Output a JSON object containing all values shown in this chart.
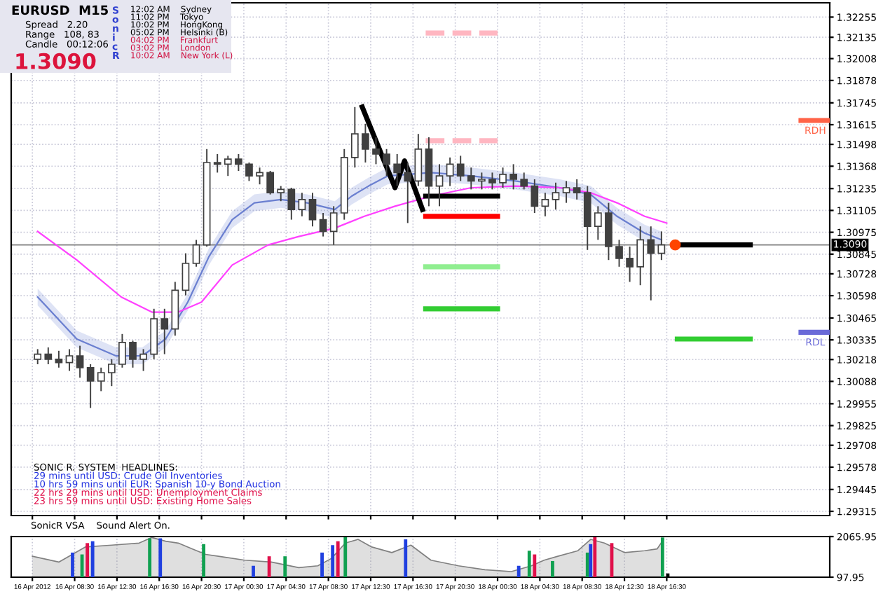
{
  "chart_data": [
    {
      "type": "candlestick",
      "xlim": [
        "2012-04-16T02:30",
        "2012-04-19T07:55"
      ],
      "ylim": [
        1.2929,
        1.3234
      ],
      "xticks": [
        {
          "value": "2012-04-16T04:30",
          "label": null
        },
        {
          "value": "2012-04-16T08:30",
          "label": null
        },
        {
          "value": "2012-04-16T12:30",
          "label": null
        },
        {
          "value": "2012-04-16T16:30",
          "label": null
        },
        {
          "value": "2012-04-16T20:30",
          "label": null
        },
        {
          "value": "2012-04-17T00:30",
          "label": null
        },
        {
          "value": "2012-04-17T04:30",
          "label": null
        },
        {
          "value": "2012-04-17T08:30",
          "label": null
        },
        {
          "value": "2012-04-17T12:30",
          "label": null
        },
        {
          "value": "2012-04-17T16:30",
          "label": null
        },
        {
          "value": "2012-04-17T20:30",
          "label": null
        },
        {
          "value": "2012-04-18T00:30",
          "label": null
        },
        {
          "value": "2012-04-18T04:30",
          "label": null
        },
        {
          "value": "2012-04-18T08:30",
          "label": null
        },
        {
          "value": "2012-04-18T12:30",
          "label": null
        },
        {
          "value": "2012-04-18T16:30",
          "label": null
        }
      ],
      "yticks": [
        1.32255,
        1.32135,
        1.32008,
        1.31878,
        1.31745,
        1.31615,
        1.31498,
        1.31368,
        1.31235,
        1.31105,
        1.30975,
        1.30845,
        1.30728,
        1.30598,
        1.30465,
        1.30335,
        1.30218,
        1.30088,
        1.29955,
        1.29825,
        1.29708,
        1.29578,
        1.29445,
        1.29315
      ],
      "grid": true,
      "tick_labels": "y",
      "ref_lines": [
        {
          "axis": "y",
          "value": 1.309,
          "label": "1.3090",
          "color": "#808080"
        }
      ],
      "annotations": [
        "EURUSD  M15",
        "Spread   2.20",
        "Range   108, 83",
        "Candle   00:12:06",
        "1.3090",
        "S\no\nn\ni\nc\nR",
        "12:02 AM    Sydney",
        "11:02 PM    Tokyo",
        "10:02 PM    HongKong",
        "05:02 PM    Helsinki (B)",
        "04:02 PM    Frankfurt",
        "03:02 PM    London",
        "10:02 AM    New York (L)",
        "SONIC R. SYSTEM  HEADLINES:",
        "29 mins until USD: Crude Oil Inventories",
        "10 hrs 59 mins until EUR: Spanish 10-y Bond Auction",
        "22 hrs 29 mins until USD: Unemployment Claims",
        "23 hrs 59 mins until USD: Existing Home Sales"
      ],
      "series": [
        {
          "type": "line",
          "color": "#6a7fd0",
          "x": [
            "2012-04-16T05:00",
            "2012-04-16T08:42",
            "2012-04-16T12:24",
            "2012-04-16T14:54",
            "2012-04-16T17:06",
            "2012-04-16T19:12",
            "2012-04-16T21:12",
            "2012-04-16T23:24",
            "2012-04-17T01:30",
            "2012-04-17T04:00",
            "2012-04-17T06:30",
            "2012-04-17T09:06",
            "2012-04-17T10:42",
            "2012-04-17T12:18",
            "2012-04-17T14:06",
            "2012-04-17T16:06",
            "2012-04-17T18:12",
            "2012-04-17T22:00",
            "2012-04-18T02:12",
            "2012-04-18T06:24",
            "2012-04-18T09:18",
            "2012-04-18T11:48",
            "2012-04-18T14:24",
            "2012-04-18T16:00"
          ],
          "values": [
            1.3059,
            1.3034,
            1.3024,
            1.3024,
            1.3034,
            1.3056,
            1.3083,
            1.3105,
            1.3115,
            1.3117,
            1.3115,
            1.3111,
            1.3119,
            1.3125,
            1.3131,
            1.3132,
            1.3133,
            1.3131,
            1.3128,
            1.3124,
            1.312,
            1.3107,
            1.3097,
            1.3093
          ],
          "lower": [
            1.3054,
            1.3029,
            1.3019,
            1.3019,
            1.3029,
            1.3051,
            1.3078,
            1.31,
            1.311,
            1.3112,
            1.311,
            1.3106,
            1.3114,
            1.312,
            1.3126,
            1.3127,
            1.3128,
            1.3126,
            1.3123,
            1.3119,
            1.3115,
            1.3102,
            1.3092,
            1.3088
          ],
          "upper": [
            1.3064,
            1.3039,
            1.3029,
            1.3029,
            1.3039,
            1.3061,
            1.3088,
            1.311,
            1.312,
            1.3122,
            1.312,
            1.3116,
            1.3124,
            1.313,
            1.3136,
            1.3137,
            1.3138,
            1.3136,
            1.3133,
            1.3129,
            1.3125,
            1.3112,
            1.3102,
            1.3098
          ]
        },
        {
          "type": "line",
          "color": "#ff40ff",
          "x": [
            "2012-04-16T05:00",
            "2012-04-16T08:42",
            "2012-04-16T12:54",
            "2012-04-16T15:48",
            "2012-04-16T18:18",
            "2012-04-16T20:30",
            "2012-04-16T23:24",
            "2012-04-17T02:48",
            "2012-04-17T05:42",
            "2012-04-17T09:06",
            "2012-04-17T11:54",
            "2012-04-17T14:48",
            "2012-04-17T18:12",
            "2012-04-17T22:00",
            "2012-04-18T02:12",
            "2012-04-18T06:24",
            "2012-04-18T09:18",
            "2012-04-18T11:48",
            "2012-04-18T14:24",
            "2012-04-18T16:30"
          ],
          "values": [
            1.3098,
            1.3081,
            1.3059,
            1.305,
            1.305,
            1.3056,
            1.3078,
            1.309,
            1.3095,
            1.31,
            1.3107,
            1.3113,
            1.3119,
            1.3124,
            1.3125,
            1.3124,
            1.3121,
            1.3115,
            1.3107,
            1.3103
          ]
        },
        {
          "color": "#404040",
          "x": [
            "2012-04-16T05:00",
            "2012-04-16T06:00",
            "2012-04-16T07:00",
            "2012-04-16T08:00",
            "2012-04-16T09:00",
            "2012-04-16T10:00",
            "2012-04-16T11:00",
            "2012-04-16T12:00",
            "2012-04-16T13:00",
            "2012-04-16T14:00",
            "2012-04-16T15:00",
            "2012-04-16T16:00",
            "2012-04-16T17:00",
            "2012-04-16T18:00",
            "2012-04-16T19:00",
            "2012-04-16T20:00",
            "2012-04-16T21:00",
            "2012-04-16T22:00",
            "2012-04-16T23:00",
            "2012-04-17T00:00",
            "2012-04-17T01:00",
            "2012-04-17T02:00",
            "2012-04-17T03:00",
            "2012-04-17T04:00",
            "2012-04-17T05:00",
            "2012-04-17T06:00",
            "2012-04-17T07:00",
            "2012-04-17T08:00",
            "2012-04-17T09:00",
            "2012-04-17T10:00",
            "2012-04-17T11:00",
            "2012-04-17T12:00",
            "2012-04-17T13:00",
            "2012-04-17T14:00",
            "2012-04-17T15:00",
            "2012-04-17T16:00",
            "2012-04-17T17:00",
            "2012-04-17T18:00",
            "2012-04-17T19:00",
            "2012-04-17T20:00",
            "2012-04-17T21:00",
            "2012-04-17T22:00",
            "2012-04-17T23:00",
            "2012-04-18T00:00",
            "2012-04-18T01:00",
            "2012-04-18T02:00",
            "2012-04-18T03:00",
            "2012-04-18T04:00",
            "2012-04-18T05:00",
            "2012-04-18T06:00",
            "2012-04-18T07:00",
            "2012-04-18T08:00",
            "2012-04-18T09:00",
            "2012-04-18T10:00",
            "2012-04-18T11:00",
            "2012-04-18T12:00",
            "2012-04-18T13:00",
            "2012-04-18T14:00",
            "2012-04-18T15:00",
            "2012-04-18T16:00"
          ],
          "ohlc": [
            [
              1.3022,
              1.3028,
              1.3019,
              1.3025
            ],
            [
              1.3025,
              1.3029,
              1.3019,
              1.3022
            ],
            [
              1.3022,
              1.3027,
              1.3017,
              1.302
            ],
            [
              1.302,
              1.3028,
              1.3015,
              1.3024
            ],
            [
              1.3024,
              1.303,
              1.3011,
              1.3017
            ],
            [
              1.3017,
              1.3019,
              1.2993,
              1.3009
            ],
            [
              1.3009,
              1.3017,
              1.3003,
              1.3014
            ],
            [
              1.3014,
              1.3022,
              1.3006,
              1.3019
            ],
            [
              1.3019,
              1.3037,
              1.3017,
              1.3032
            ],
            [
              1.3032,
              1.3033,
              1.3017,
              1.3022
            ],
            [
              1.3022,
              1.3028,
              1.3015,
              1.3025
            ],
            [
              1.3025,
              1.3052,
              1.3022,
              1.3046
            ],
            [
              1.3046,
              1.3052,
              1.3025,
              1.304
            ],
            [
              1.304,
              1.3068,
              1.3036,
              1.3063
            ],
            [
              1.3063,
              1.3085,
              1.306,
              1.3079
            ],
            [
              1.3079,
              1.3093,
              1.3077,
              1.309
            ],
            [
              1.309,
              1.3147,
              1.3089,
              1.3139
            ],
            [
              1.3139,
              1.3144,
              1.3133,
              1.3138
            ],
            [
              1.3138,
              1.3143,
              1.3131,
              1.3141
            ],
            [
              1.3141,
              1.3144,
              1.3134,
              1.3138
            ],
            [
              1.3138,
              1.3139,
              1.3128,
              1.3131
            ],
            [
              1.3131,
              1.3136,
              1.3126,
              1.3133
            ],
            [
              1.3133,
              1.3134,
              1.312,
              1.3121
            ],
            [
              1.3121,
              1.3125,
              1.3116,
              1.3123
            ],
            [
              1.3123,
              1.3124,
              1.3105,
              1.3111
            ],
            [
              1.3111,
              1.3121,
              1.3107,
              1.3117
            ],
            [
              1.3117,
              1.3121,
              1.3101,
              1.3105
            ],
            [
              1.3105,
              1.3109,
              1.3095,
              1.3098
            ],
            [
              1.3098,
              1.3113,
              1.309,
              1.3109
            ],
            [
              1.3109,
              1.3147,
              1.3105,
              1.3142
            ],
            [
              1.3142,
              1.3172,
              1.3136,
              1.3156
            ],
            [
              1.3156,
              1.3162,
              1.3139,
              1.3147
            ],
            [
              1.3147,
              1.3154,
              1.3138,
              1.3144
            ],
            [
              1.3144,
              1.3147,
              1.3131,
              1.3138
            ],
            [
              1.3138,
              1.3144,
              1.3125,
              1.3133
            ],
            [
              1.3133,
              1.3139,
              1.3103,
              1.3128
            ],
            [
              1.3128,
              1.3156,
              1.3125,
              1.3147
            ],
            [
              1.3147,
              1.3154,
              1.3113,
              1.3125
            ],
            [
              1.3125,
              1.3138,
              1.3113,
              1.3131
            ],
            [
              1.3131,
              1.3142,
              1.3125,
              1.3138
            ],
            [
              1.3138,
              1.3143,
              1.3128,
              1.3131
            ],
            [
              1.3131,
              1.3136,
              1.3123,
              1.3128
            ],
            [
              1.3128,
              1.3133,
              1.3123,
              1.3129
            ],
            [
              1.3129,
              1.3133,
              1.3123,
              1.3127
            ],
            [
              1.3127,
              1.3136,
              1.3124,
              1.3132
            ],
            [
              1.3132,
              1.3138,
              1.3123,
              1.3129
            ],
            [
              1.3129,
              1.3133,
              1.3123,
              1.3125
            ],
            [
              1.3125,
              1.3129,
              1.3109,
              1.3113
            ],
            [
              1.3113,
              1.3121,
              1.3107,
              1.3117
            ],
            [
              1.3117,
              1.3127,
              1.3111,
              1.3121
            ],
            [
              1.3121,
              1.3128,
              1.3115,
              1.3124
            ],
            [
              1.3124,
              1.3129,
              1.3117,
              1.3121
            ],
            [
              1.3121,
              1.3125,
              1.3087,
              1.3101
            ],
            [
              1.3101,
              1.3113,
              1.3093,
              1.3109
            ],
            [
              1.3109,
              1.3115,
              1.3081,
              1.3089
            ],
            [
              1.3089,
              1.3093,
              1.3077,
              1.3082
            ],
            [
              1.3082,
              1.3089,
              1.3068,
              1.3077
            ],
            [
              1.3077,
              1.3101,
              1.3066,
              1.3093
            ],
            [
              1.3093,
              1.3101,
              1.3057,
              1.3085
            ],
            [
              1.3085,
              1.3098,
              1.3081,
              1.309
            ]
          ]
        },
        {
          "type": "line",
          "color": "#000000",
          "x": [
            "2012-04-17T11:42",
            "2012-04-17T14:48",
            "2012-04-17T15:42",
            "2012-04-17T17:24"
          ],
          "values": [
            1.3172,
            1.3124,
            1.314,
            1.3111
          ]
        },
        {
          "type": "line",
          "color": "#ffb6c1",
          "line_style": "dashed",
          "x": [
            "2012-04-17T17:42",
            "2012-04-18T00:30"
          ],
          "values": [
            1.3216,
            1.3216
          ]
        },
        {
          "type": "line",
          "color": "#ffb6c1",
          "line_style": "dashed",
          "x": [
            "2012-04-17T17:42",
            "2012-04-18T00:30"
          ],
          "values": [
            1.3152,
            1.3152
          ]
        },
        {
          "type": "line",
          "color": "#000000",
          "x": [
            "2012-04-17T17:42",
            "2012-04-18T00:30"
          ],
          "values": [
            1.3119,
            1.3119
          ]
        },
        {
          "type": "line",
          "color": "#ff0000",
          "x": [
            "2012-04-17T17:42",
            "2012-04-18T00:30"
          ],
          "values": [
            1.3107,
            1.3107
          ]
        },
        {
          "type": "line",
          "color": "#90ee90",
          "x": [
            "2012-04-17T17:42",
            "2012-04-18T00:30"
          ],
          "values": [
            1.3077,
            1.3077
          ]
        },
        {
          "type": "line",
          "color": "#32cd32",
          "x": [
            "2012-04-17T17:42",
            "2012-04-18T00:30"
          ],
          "values": [
            1.3052,
            1.3052
          ]
        },
        {
          "type": "line",
          "color": "#000000",
          "x": [
            "2012-04-18T17:30",
            "2012-04-19T00:24"
          ],
          "values": [
            1.309,
            1.309
          ]
        },
        {
          "type": "line",
          "color": "#32cd32",
          "x": [
            "2012-04-18T17:30",
            "2012-04-19T00:24"
          ],
          "values": [
            1.3034,
            1.3034
          ]
        },
        {
          "type": "line",
          "name": "RDH",
          "color": "#ff6347",
          "x": [
            "2012-04-19T05:12",
            "2012-04-19T07:54"
          ],
          "values": [
            1.3164,
            1.3164
          ]
        },
        {
          "type": "line",
          "name": "RDL",
          "color": "#6a6ad8",
          "x": [
            "2012-04-19T05:12",
            "2012-04-19T07:54"
          ],
          "values": [
            1.3038,
            1.3038
          ]
        },
        {
          "type": "scatter",
          "color": "#ff4500",
          "x": [
            "2012-04-18T17:18"
          ],
          "values": [
            1.309
          ]
        }
      ]
    },
    {
      "type": "area",
      "xlim": [
        "2012-04-16T02:30",
        "2012-04-19T07:55"
      ],
      "ylim": [
        97.95,
        2065.95
      ],
      "yticks": [
        97.95,
        2065.95
      ],
      "grid": true,
      "xticks": [
        {
          "value": "2012-04-16T04:30",
          "label": "16 Apr 2012"
        },
        {
          "value": "2012-04-16T08:30",
          "label": "16 Apr 08:30"
        },
        {
          "value": "2012-04-16T12:30",
          "label": "16 Apr 12:30"
        },
        {
          "value": "2012-04-16T16:30",
          "label": "16 Apr 16:30"
        },
        {
          "value": "2012-04-16T20:30",
          "label": "16 Apr 20:30"
        },
        {
          "value": "2012-04-17T00:30",
          "label": "17 Apr 00:30"
        },
        {
          "value": "2012-04-17T04:30",
          "label": "17 Apr 04:30"
        },
        {
          "value": "2012-04-17T08:30",
          "label": "17 Apr 08:30"
        },
        {
          "value": "2012-04-17T12:30",
          "label": "17 Apr 12:30"
        },
        {
          "value": "2012-04-17T16:30",
          "label": "17 Apr 16:30"
        },
        {
          "value": "2012-04-17T20:30",
          "label": "17 Apr 20:30"
        },
        {
          "value": "2012-04-18T00:30",
          "label": "18 Apr 00:30"
        },
        {
          "value": "2012-04-18T04:30",
          "label": "18 Apr 04:30"
        },
        {
          "value": "2012-04-18T08:30",
          "label": "18 Apr 08:30"
        },
        {
          "value": "2012-04-18T12:30",
          "label": "18 Apr 12:30"
        },
        {
          "value": "2012-04-18T16:30",
          "label": "18 Apr 16:30"
        }
      ],
      "annotations": [
        "SonicR VSA    Sound Alert On."
      ],
      "series": [
        {
          "color": "#808080",
          "x": [
            "2012-04-16T04:30",
            "2012-04-16T07:00",
            "2012-04-16T09:30",
            "2012-04-16T12:00",
            "2012-04-16T14:36",
            "2012-04-16T15:48",
            "2012-04-16T17:06",
            "2012-04-16T18:18",
            "2012-04-16T19:36",
            "2012-04-16T20:54",
            "2012-04-16T22:06",
            "2012-04-17T00:36",
            "2012-04-17T03:06",
            "2012-04-17T05:42",
            "2012-04-17T07:30",
            "2012-04-17T08:48",
            "2012-04-17T10:06",
            "2012-04-17T11:18",
            "2012-04-17T12:36",
            "2012-04-17T14:30",
            "2012-04-17T16:18",
            "2012-04-17T18:12",
            "2012-04-17T20:48",
            "2012-04-17T23:18",
            "2012-04-18T01:48",
            "2012-04-18T03:42",
            "2012-04-18T04:54",
            "2012-04-18T06:12",
            "2012-04-18T08:06",
            "2012-04-18T09:18",
            "2012-04-18T10:36",
            "2012-04-18T12:30",
            "2012-04-18T14:24",
            "2012-04-18T15:36",
            "2012-04-18T16:12"
          ],
          "values": [
            1110,
            830,
            1560,
            1650,
            1750,
            2020,
            1840,
            1750,
            1470,
            1200,
            1110,
            920,
            830,
            560,
            650,
            1010,
            1750,
            1930,
            1560,
            1290,
            1650,
            920,
            650,
            460,
            370,
            650,
            920,
            1110,
            1380,
            1930,
            1750,
            1290,
            1380,
            1470,
            1930
          ]
        },
        {
          "type": "bar",
          "x": [
            "2012-04-16T08:18",
            "2012-04-16T09:12",
            "2012-04-16T09:42",
            "2012-04-16T10:12",
            "2012-04-16T15:36",
            "2012-04-16T16:36",
            "2012-04-16T20:42",
            "2012-04-17T01:24",
            "2012-04-17T02:54",
            "2012-04-17T04:24",
            "2012-04-17T07:54",
            "2012-04-17T08:54",
            "2012-04-17T09:24",
            "2012-04-17T10:06",
            "2012-04-17T15:48",
            "2012-04-18T02:30",
            "2012-04-18T03:30",
            "2012-04-18T04:00",
            "2012-04-18T05:42",
            "2012-04-18T09:00",
            "2012-04-18T09:18",
            "2012-04-18T09:42",
            "2012-04-18T11:18",
            "2012-04-18T16:06",
            "2012-04-18T16:36"
          ],
          "values": [
            1290,
            1200,
            1750,
            1840,
            1980,
            1980,
            1700,
            650,
            1110,
            1110,
            1290,
            1650,
            1840,
            2040,
            1930,
            650,
            1380,
            1200,
            880,
            1290,
            1700,
            2040,
            1750,
            2020,
            280
          ],
          "colors": [
            "#2040e0",
            "#10a050",
            "#e0104a",
            "#2040e0",
            "#10a050",
            "#2040e0",
            "#10a050",
            "#2040e0",
            "#e0104a",
            "#10a050",
            "#2040e0",
            "#2040e0",
            "#e0104a",
            "#10a050",
            "#2040e0",
            "#2040e0",
            "#10a050",
            "#e0104a",
            "#10a050",
            "#10a050",
            "#2040e0",
            "#e0104a",
            "#e0104a",
            "#10a050",
            "#000000"
          ]
        }
      ]
    }
  ]
}
